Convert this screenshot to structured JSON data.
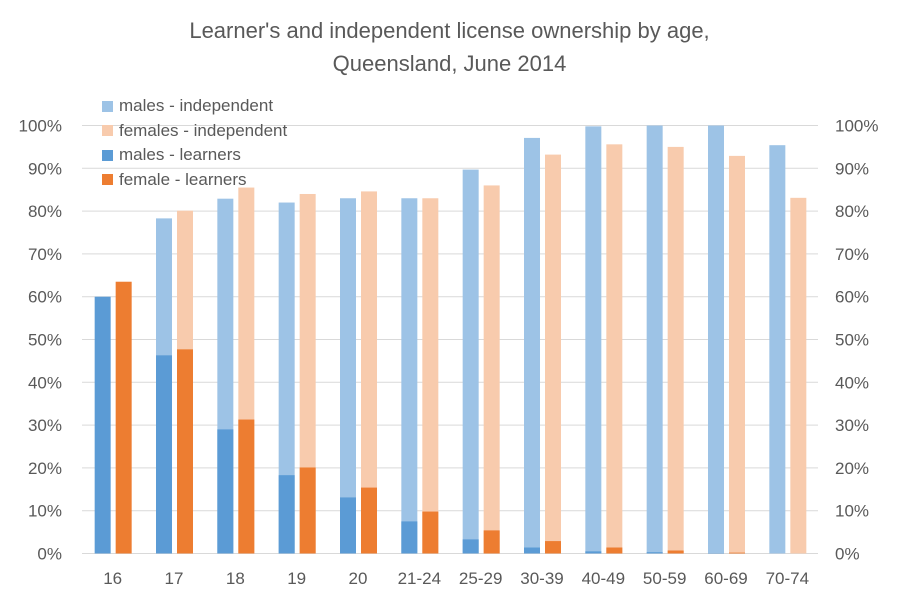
{
  "chart_data": {
    "type": "bar",
    "subtype": "overlapped-stacked (learners overlaid on independent, dual y-axis)",
    "title": "Learner's and independent license ownership by age, Queensland, June 2014",
    "title_lines": [
      "Learner's and independent  license ownership by age,",
      "Queensland, June 2014"
    ],
    "xlabel": "",
    "ylabel": "",
    "ylim": [
      0,
      100
    ],
    "yticks": [
      "0%",
      "10%",
      "20%",
      "30%",
      "40%",
      "50%",
      "60%",
      "70%",
      "80%",
      "90%",
      "100%"
    ],
    "y2ticks": [
      "0%",
      "10%",
      "20%",
      "30%",
      "40%",
      "50%",
      "60%",
      "70%",
      "80%",
      "90%",
      "100%"
    ],
    "grid": true,
    "legend_position": "top-left (inside plot)",
    "categories": [
      "16",
      "17",
      "18",
      "19",
      "20",
      "21-24",
      "25-29",
      "30-39",
      "40-49",
      "50-59",
      "60-69",
      "70-74"
    ],
    "series": [
      {
        "name": "males - independent",
        "color": "#9dc3e6",
        "values": [
          0,
          78.3,
          82.9,
          82.0,
          83.0,
          83.0,
          89.7,
          97.1,
          99.8,
          100.0,
          100.0,
          95.4
        ]
      },
      {
        "name": "females - independent",
        "color": "#f8cbad",
        "values": [
          0,
          80.1,
          85.5,
          84.0,
          84.6,
          83.0,
          86.0,
          93.2,
          95.6,
          95.0,
          92.9,
          83.1
        ]
      },
      {
        "name": "males - learners",
        "color": "#5b9bd5",
        "values": [
          60.0,
          46.3,
          29.0,
          18.3,
          13.1,
          7.5,
          3.3,
          1.4,
          0.5,
          0.3,
          0.1,
          0.0
        ]
      },
      {
        "name": "female - learners",
        "color": "#ed7d31",
        "values": [
          63.5,
          47.7,
          31.3,
          20.1,
          15.4,
          9.8,
          5.4,
          2.9,
          1.4,
          0.7,
          0.2,
          0.0
        ]
      }
    ]
  },
  "colors": {
    "text": "#595959",
    "grid": "#d9d9d9",
    "male_independent": "#9dc3e6",
    "female_independent": "#f8cbad",
    "male_learners": "#5b9bd5",
    "female_learners": "#ed7d31"
  }
}
